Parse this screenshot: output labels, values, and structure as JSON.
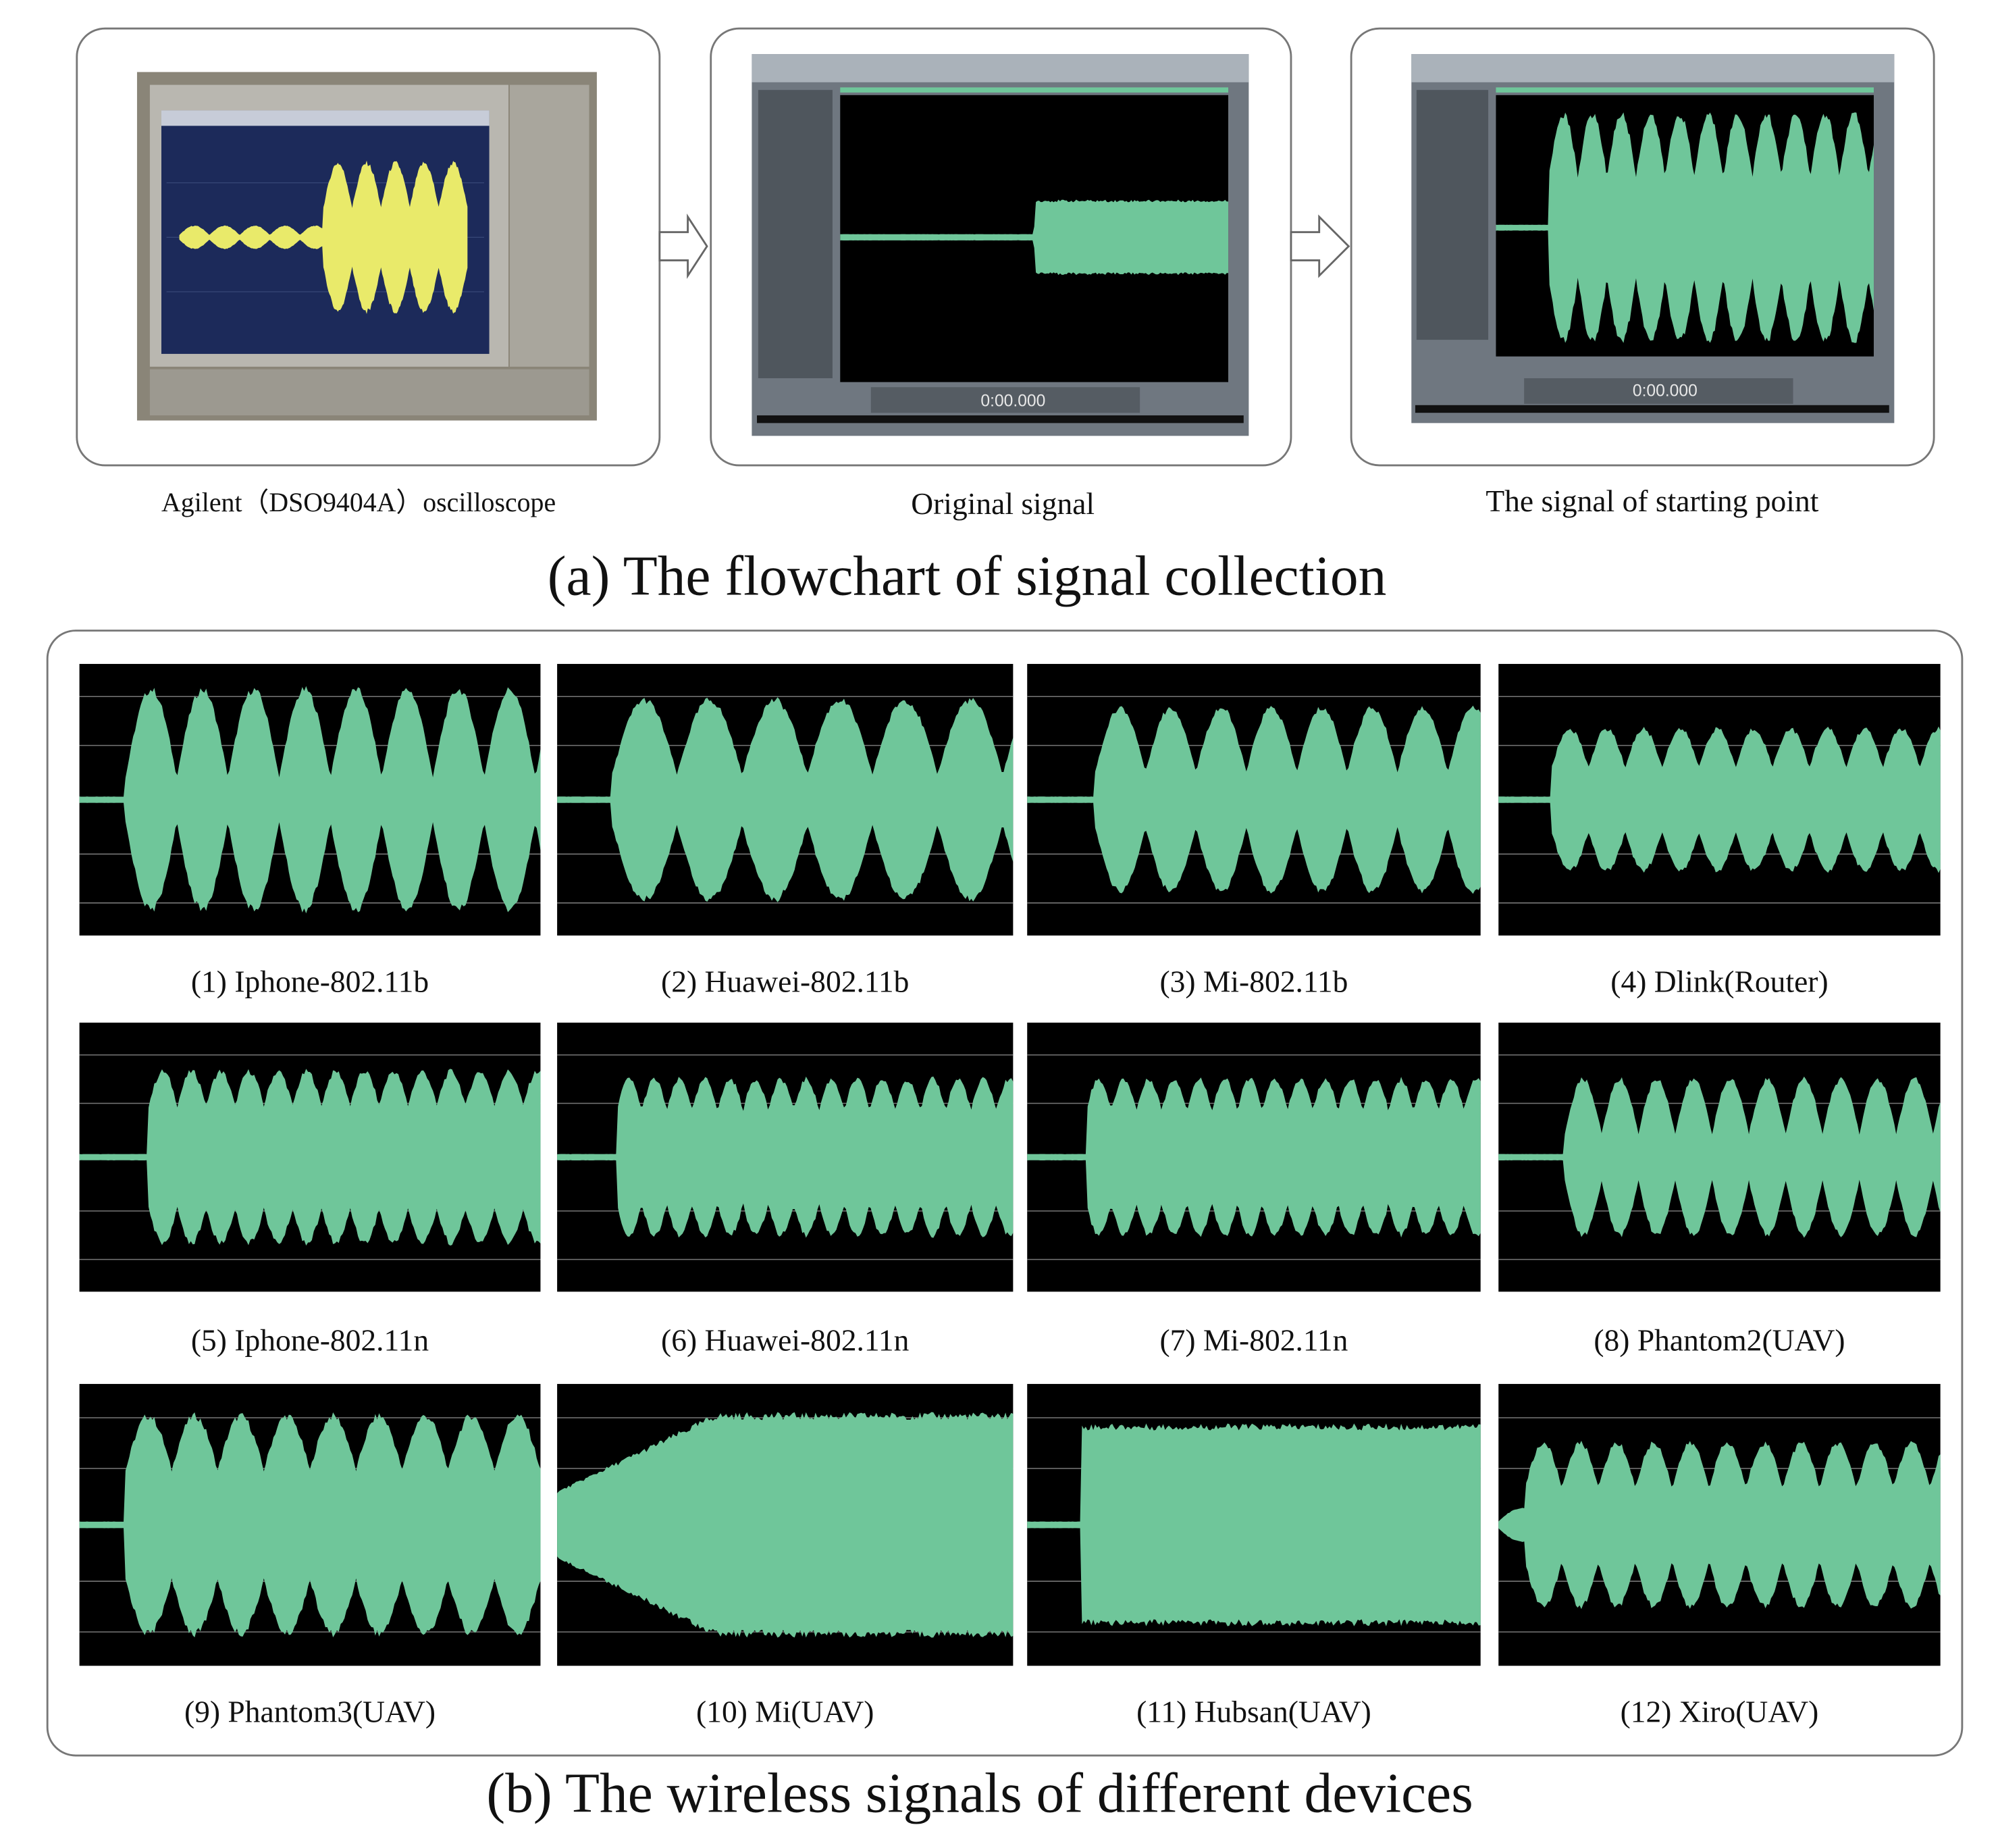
{
  "panel_a": {
    "title": "(a) The flowchart of  signal collection",
    "steps": [
      {
        "label": "Agilent（DSO9404A）oscilloscope"
      },
      {
        "label": "Original signal",
        "time": "0:00.000"
      },
      {
        "label": "The signal of  starting point",
        "time": "0:00.000"
      }
    ]
  },
  "panel_b": {
    "title": "(b) The wireless signals of different devices",
    "devices": [
      "(1)  Iphone-802.11b",
      "(2)  Huawei-802.11b",
      "(3) Mi-802.11b",
      "(4) Dlink(Router)",
      "(5)  Iphone-802.11n",
      "(6)  Huawei-802.11n",
      "(7)  Mi-802.11n",
      "(8)  Phantom2(UAV)",
      "(9)  Phantom3(UAV)",
      "(10)  Mi(UAV)",
      "(11)  Hubsan(UAV)",
      "(12)  Xiro(UAV)"
    ]
  }
}
